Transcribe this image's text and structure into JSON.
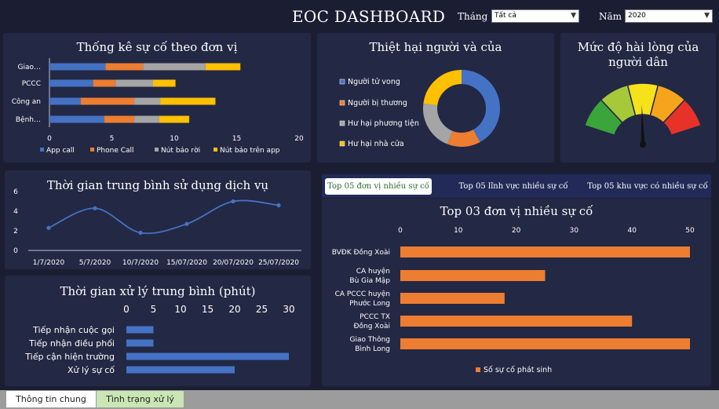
{
  "header": {
    "title": "EOC DASHBOARD",
    "month_label": "Tháng",
    "month_value": "Tất cả",
    "year_label": "Năm",
    "year_value": "2020"
  },
  "incidents_by_unit": {
    "title": "Thống kê sự cố theo đơn vị",
    "chart_data": {
      "type": "bar",
      "orientation": "horizontal",
      "stacked": true,
      "categories": [
        "Giao…",
        "PCCC",
        "Công an",
        "Bệnh…"
      ],
      "series": [
        {
          "name": "App call",
          "color": "#4472c4",
          "values": [
            4.5,
            3.5,
            2.5,
            4.4
          ]
        },
        {
          "name": "Phone Call",
          "color": "#ed7d31",
          "values": [
            3,
            1.8,
            4.3,
            2.4
          ]
        },
        {
          "name": "Nút báo rời",
          "color": "#a5a5a5",
          "values": [
            5,
            3,
            2.1,
            2
          ]
        },
        {
          "name": "Nút báo trên app",
          "color": "#ffc000",
          "values": [
            2.8,
            1.8,
            4.4,
            2.4
          ]
        }
      ],
      "x_ticks": [
        "0",
        "5",
        "10",
        "15",
        "20"
      ],
      "xlim": [
        0,
        20
      ],
      "legend": "bottom"
    }
  },
  "damage": {
    "title": "Thiệt hại người và của",
    "chart_data": {
      "type": "pie",
      "donut": true,
      "labels": [
        "Người tử vong",
        "Người bị thương",
        "Hư hại phương tiện",
        "Hư hại nhà cửa"
      ],
      "colors": [
        "#4472c4",
        "#ed7d31",
        "#a5a5a5",
        "#ffc000"
      ],
      "values": [
        42,
        14,
        21,
        23
      ],
      "legend": "left"
    }
  },
  "satisfaction": {
    "title_line1": "Mức độ hài lòng của",
    "title_line2": "người dân",
    "gauge": {
      "segments": [
        "#3aa53a",
        "#a6c93a",
        "#f5e21a",
        "#f6a41c",
        "#e63228"
      ],
      "value_fraction": 0.49
    }
  },
  "service_time": {
    "title": "Thời gian trung bình sử dụng dịch vụ",
    "chart_data": {
      "type": "line",
      "categories": [
        "1/7/2020",
        "5/7/2020",
        "10/7/2020",
        "15/07/2020",
        "20/07/2020",
        "25/07/2020"
      ],
      "values": [
        2.3,
        4.3,
        1.8,
        2.7,
        5.0,
        4.6
      ],
      "y_ticks": [
        "0",
        "2",
        "4",
        "6"
      ],
      "ylim": [
        0,
        6
      ],
      "color": "#4472c4"
    }
  },
  "processing_time": {
    "title": "Thời gian xử lý trung bình (phút)",
    "chart_data": {
      "type": "bar",
      "orientation": "horizontal",
      "categories": [
        "Tiếp nhận cuộc gọi",
        "Tiếp nhận điều phối",
        "Tiếp cận hiện trường",
        "Xử lý sự cố"
      ],
      "values": [
        5,
        5,
        30,
        20
      ],
      "x_ticks": [
        "0",
        "5",
        "10",
        "15",
        "20",
        "25",
        "30"
      ],
      "xlim": [
        0,
        30
      ],
      "color": "#4472c4"
    }
  },
  "top_tabs": [
    {
      "label": "Top 05 đơn vị nhiều sự cố",
      "active": true
    },
    {
      "label": "Top 05  lĩnh vực nhiều sự cố",
      "active": false
    },
    {
      "label": "Top 05 khu vực có nhiều sự cố",
      "active": false
    }
  ],
  "top3": {
    "title": "Top 03 đơn vị nhiều sự cố",
    "chart_data": {
      "type": "bar",
      "orientation": "horizontal",
      "categories": [
        [
          "BVĐK Đồng Xoài"
        ],
        [
          "CA huyện",
          "Bù Gia Mập"
        ],
        [
          "CA PCCC huyện",
          "Phước Long"
        ],
        [
          "PCCC TX",
          "Đồng Xoài"
        ],
        [
          "Giao Thông",
          "Bình Long"
        ]
      ],
      "values": [
        50,
        25,
        18,
        40,
        50
      ],
      "x_ticks": [
        "0",
        "10",
        "20",
        "30",
        "40",
        "50"
      ],
      "xlim": [
        0,
        50
      ],
      "color": "#ed7d31",
      "series_name": "Số sự cố phát sinh",
      "legend": "bottom"
    }
  },
  "sheet_tabs": [
    {
      "label": "Thông tin chung",
      "active": true
    },
    {
      "label": "Tình trạng xử lý",
      "active": false
    }
  ]
}
